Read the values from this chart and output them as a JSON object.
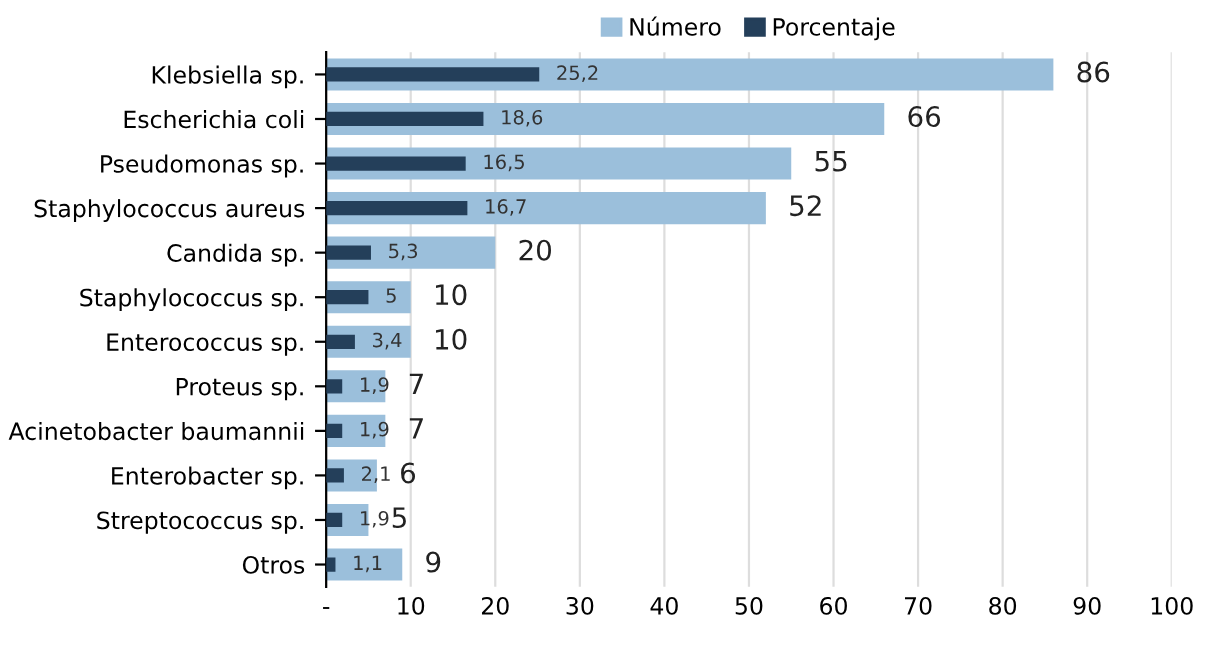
{
  "chart_data": {
    "type": "bar",
    "orientation": "horizontal",
    "categories": [
      "Klebsiella sp.",
      "Escherichia coli",
      "Pseudomonas sp.",
      "Staphylococcus aureus",
      "Candida sp.",
      "Staphylococcus sp.",
      "Enterococcus sp.",
      "Proteus sp.",
      "Acinetobacter baumannii",
      "Enterobacter sp.",
      "Streptococcus sp.",
      "Otros"
    ],
    "series": [
      {
        "name": "Número",
        "color": "#9bbfdb",
        "values": [
          86,
          66,
          55,
          52,
          20,
          10,
          10,
          7,
          7,
          6,
          5,
          9
        ],
        "value_labels": [
          "86",
          "66",
          "55",
          "52",
          "20",
          "10",
          "10",
          "7",
          "7",
          "6",
          "5",
          "9"
        ]
      },
      {
        "name": "Porcentaje",
        "color": "#243f5a",
        "values": [
          25.2,
          18.6,
          16.5,
          16.7,
          5.3,
          5,
          3.4,
          1.9,
          1.9,
          2.1,
          1.9,
          1.1
        ],
        "value_labels": [
          "25,2",
          "18,6",
          "16,5",
          "16,7",
          "5,3",
          "5",
          "3,4",
          "1,9",
          "1,9",
          "2,1",
          "1,9",
          "1,1"
        ]
      }
    ],
    "xlim": [
      0,
      100
    ],
    "xticks": [
      {
        "value": 0,
        "label": "-"
      },
      10,
      20,
      30,
      40,
      50,
      60,
      70,
      80,
      90,
      100
    ],
    "grid": "x",
    "legend": "top"
  }
}
